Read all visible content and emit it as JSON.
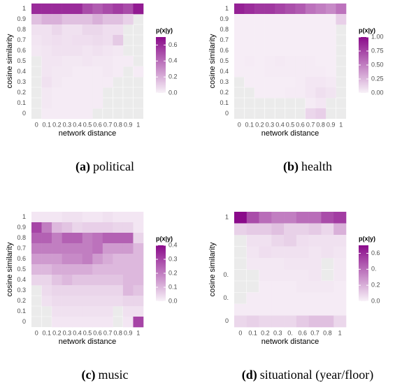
{
  "chart_data": [
    {
      "type": "heatmap",
      "label": "(a)",
      "caption": "political",
      "x_label": "network distance",
      "y_label": "cosine similarity",
      "legend_title": "p(x|y)",
      "x_categories": [
        "0",
        "0.1",
        "0.2",
        "0.3",
        "0.4",
        "0.5",
        "0.6",
        "0.7",
        "0.8",
        "0.9",
        "1"
      ],
      "y_categories": [
        "1",
        "0.9",
        "0.8",
        "0.7",
        "0.6",
        "0.5",
        "0.4",
        "0.3",
        "0.2",
        "0.1",
        "0"
      ],
      "low_color": "#f8f2f8",
      "high_color": "#8a0a8a",
      "clim": [
        0,
        0.7
      ],
      "colorbar_ticks": [
        {
          "value": 0,
          "label": "0.0"
        },
        0.2,
        0.4,
        0.6
      ],
      "values": [
        [
          0.6,
          0.6,
          0.6,
          0.6,
          0.6,
          0.5,
          0.45,
          0.5,
          0.55,
          0.5,
          0.65
        ],
        [
          0.15,
          0.2,
          0.2,
          0.15,
          0.15,
          0.15,
          0.2,
          0.15,
          0.15,
          0.1,
          null
        ],
        [
          0.05,
          0.05,
          0.08,
          0.05,
          0.05,
          0.08,
          0.08,
          0.06,
          0.06,
          null,
          null
        ],
        [
          0.04,
          0.05,
          0.06,
          0.05,
          0.06,
          0.06,
          0.07,
          0.06,
          0.12,
          null,
          null
        ],
        [
          0.03,
          0.04,
          0.05,
          0.05,
          0.05,
          0.04,
          0.05,
          0.04,
          0.03,
          null,
          null
        ],
        [
          null,
          0.04,
          0.04,
          0.03,
          0.03,
          0.04,
          0.03,
          0.03,
          0.02,
          0.02,
          null
        ],
        [
          null,
          0.04,
          0.03,
          0.03,
          0.02,
          0.02,
          0.02,
          0.03,
          0.02,
          null,
          0.02
        ],
        [
          null,
          0.05,
          0.03,
          0.02,
          0.02,
          0.02,
          0.02,
          0.02,
          null,
          null,
          null
        ],
        [
          null,
          0.03,
          0.02,
          0.02,
          0.02,
          0.02,
          0.02,
          null,
          null,
          null,
          null
        ],
        [
          null,
          0.03,
          0.02,
          0.02,
          0.02,
          0.02,
          0.02,
          null,
          null,
          null,
          null
        ],
        [
          null,
          0.02,
          0.02,
          0.02,
          0.02,
          0.02,
          null,
          null,
          null,
          null,
          null
        ]
      ]
    },
    {
      "type": "heatmap",
      "label": "(b)",
      "caption": "health",
      "x_label": "network distance",
      "y_label": "cosine similarity",
      "legend_title": "p(x|y)",
      "x_categories": [
        "0",
        "0.1",
        "0.2",
        "0.3",
        "0.4",
        "0.5",
        "0.6",
        "0.7",
        "0.8",
        "0.9",
        "1"
      ],
      "y_categories": [
        "1",
        "0.9",
        "0.8",
        "0.7",
        "0.6",
        "0.5",
        "0.4",
        "0.3",
        "0.2",
        "0.1",
        "0"
      ],
      "low_color": "#f8f2f8",
      "high_color": "#8a0a8a",
      "clim": [
        0,
        1
      ],
      "colorbar_ticks": [
        {
          "value": 0,
          "label": "0.00"
        },
        0.25,
        {
          "value": 0.5,
          "label": "0.50"
        },
        0.75,
        {
          "value": 1,
          "label": "1.00"
        }
      ],
      "values": [
        [
          0.9,
          0.85,
          0.8,
          0.8,
          0.75,
          0.7,
          0.65,
          0.55,
          0.5,
          0.45,
          0.55
        ],
        [
          0.02,
          0.02,
          0.02,
          0.02,
          0.02,
          0.02,
          0.02,
          0.02,
          0.02,
          0.02,
          0.15
        ],
        [
          0.02,
          0.02,
          0.02,
          0.02,
          0.02,
          0.02,
          0.02,
          0.02,
          0.02,
          0.02,
          null
        ],
        [
          0.02,
          0.02,
          0.02,
          0.02,
          0.02,
          0.02,
          0.02,
          0.02,
          0.02,
          0.02,
          null
        ],
        [
          0.02,
          0.02,
          0.02,
          0.02,
          0.02,
          0.02,
          0.02,
          0.02,
          0.02,
          0.02,
          null
        ],
        [
          0.02,
          0.03,
          0.02,
          0.03,
          0.04,
          0.03,
          0.03,
          0.03,
          0.02,
          0.02,
          null
        ],
        [
          0.02,
          0.02,
          0.02,
          0.03,
          0.03,
          0.03,
          0.03,
          0.03,
          0.03,
          0.02,
          null
        ],
        [
          null,
          0.02,
          0.02,
          0.02,
          0.02,
          0.02,
          0.03,
          0.05,
          0.05,
          0.04,
          null
        ],
        [
          null,
          null,
          0.02,
          0.02,
          0.02,
          0.03,
          0.03,
          0.05,
          0.08,
          0.06,
          null
        ],
        [
          null,
          null,
          null,
          null,
          null,
          null,
          null,
          0.03,
          0.05,
          null,
          null
        ],
        [
          null,
          null,
          null,
          null,
          null,
          null,
          null,
          0.12,
          0.15,
          null,
          null
        ]
      ]
    },
    {
      "type": "heatmap",
      "label": "(c)",
      "caption": "music",
      "x_label": "network distance",
      "y_label": "cosine similarity",
      "legend_title": "p(x|y)",
      "x_categories": [
        "0",
        "0.1",
        "0.2",
        "0.3",
        "0.4",
        "0.5",
        "0.6",
        "0.7",
        "0.8",
        "0.9",
        "1"
      ],
      "y_categories": [
        "1",
        "0.9",
        "0.8",
        "0.7",
        "0.6",
        "0.5",
        "0.4",
        "0.3",
        "0.2",
        "0.1",
        "0"
      ],
      "low_color": "#f8f2f8",
      "high_color": "#8a0a8a",
      "clim": [
        0,
        0.4
      ],
      "colorbar_ticks": [
        {
          "value": 0,
          "label": "0.0"
        },
        0.1,
        0.2,
        0.3,
        0.4
      ],
      "values": [
        [
          0.02,
          0.02,
          0.02,
          0.03,
          0.03,
          0.02,
          0.02,
          0.03,
          0.02,
          0.02,
          0.02
        ],
        [
          0.3,
          0.2,
          0.1,
          0.08,
          0.05,
          0.06,
          0.06,
          0.06,
          0.05,
          0.05,
          0.02
        ],
        [
          0.25,
          0.25,
          0.2,
          0.25,
          0.25,
          0.2,
          0.22,
          0.25,
          0.25,
          0.25,
          0.05
        ],
        [
          0.2,
          0.2,
          0.2,
          0.2,
          0.2,
          0.2,
          0.22,
          0.15,
          0.15,
          0.15,
          0.1
        ],
        [
          0.15,
          0.15,
          0.15,
          0.18,
          0.18,
          0.2,
          0.15,
          0.12,
          0.1,
          0.1,
          0.1
        ],
        [
          0.1,
          0.1,
          0.12,
          0.12,
          0.12,
          0.12,
          0.1,
          0.1,
          0.1,
          0.1,
          0.1
        ],
        [
          0.05,
          0.05,
          0.08,
          0.1,
          0.08,
          0.08,
          0.08,
          0.08,
          0.08,
          0.1,
          0.1
        ],
        [
          null,
          0.04,
          0.05,
          0.05,
          0.05,
          0.05,
          0.05,
          0.05,
          0.05,
          0.1,
          0.08
        ],
        [
          null,
          0.03,
          0.04,
          0.04,
          0.04,
          0.04,
          0.04,
          0.04,
          0.04,
          0.05,
          0.05
        ],
        [
          null,
          null,
          0.03,
          0.03,
          0.03,
          0.03,
          0.03,
          0.03,
          null,
          0.03,
          0.03
        ],
        [
          null,
          null,
          0.02,
          0.02,
          0.02,
          0.02,
          0.02,
          0.02,
          null,
          0.02,
          0.3
        ]
      ]
    },
    {
      "type": "heatmap",
      "label": "(d)",
      "caption": "situational (year/floor)",
      "x_label": "network distance",
      "y_label": "cosine similarity",
      "legend_title": "p(x|y)",
      "x_categories": [
        "0",
        "0.1",
        "0.2",
        "0.3",
        "0.",
        "0.6",
        "0.7",
        "0.8",
        "1"
      ],
      "y_categories": [
        "1",
        null,
        null,
        null,
        null,
        "0.",
        null,
        "0.",
        null,
        "0"
      ],
      "low_color": "#f8f2f8",
      "high_color": "#8a0a8a",
      "clim": [
        0,
        0.7
      ],
      "colorbar_ticks": [
        {
          "value": 0,
          "label": "0.0"
        },
        0.2,
        {
          "value": 0.4,
          "label": "0."
        },
        0.6
      ],
      "values": [
        [
          0.7,
          0.5,
          0.4,
          0.35,
          0.35,
          0.4,
          0.4,
          0.5,
          0.55
        ],
        [
          0.1,
          0.12,
          0.12,
          0.15,
          0.1,
          0.1,
          0.12,
          0.08,
          0.2
        ],
        [
          null,
          0.05,
          0.05,
          0.08,
          0.1,
          0.06,
          0.05,
          0.05,
          0.05
        ],
        [
          null,
          0.04,
          0.06,
          0.05,
          0.05,
          0.05,
          0.04,
          0.05,
          0.04
        ],
        [
          null,
          0.03,
          0.03,
          0.03,
          0.04,
          0.04,
          0.04,
          null,
          0.03
        ],
        [
          null,
          null,
          0.03,
          0.03,
          0.03,
          0.03,
          0.04,
          null,
          0.03
        ],
        [
          null,
          null,
          0.02,
          0.02,
          0.02,
          0.03,
          0.03,
          0.03,
          0.02
        ],
        [
          null,
          0.02,
          0.02,
          0.02,
          0.02,
          0.02,
          0.02,
          0.02,
          0.02
        ],
        [
          0.02,
          0.02,
          0.02,
          0.02,
          0.02,
          0.02,
          0.02,
          0.02,
          0.02
        ],
        [
          0.08,
          0.1,
          0.08,
          0.08,
          0.08,
          0.12,
          0.15,
          0.15,
          0.08
        ]
      ]
    }
  ]
}
